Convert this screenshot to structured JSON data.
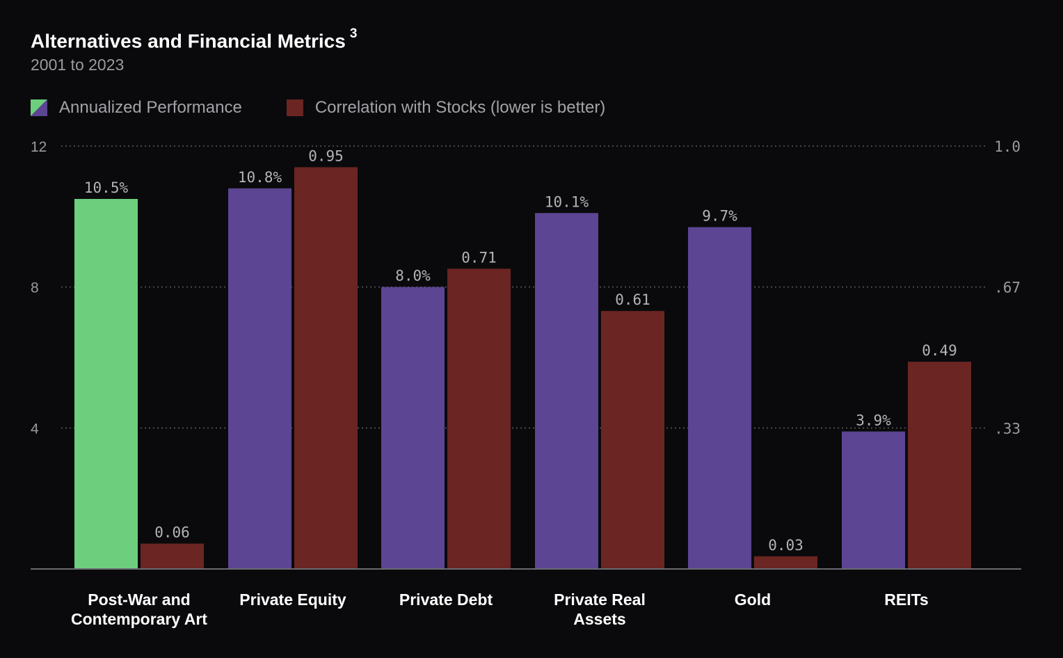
{
  "title": "Alternatives and Financial Metrics",
  "title_footnote": "3",
  "subtitle": "2001 to 2023",
  "legend": [
    {
      "label": "Annualized Performance",
      "swatch": "gradient"
    },
    {
      "label": "Correlation with Stocks (lower is better)",
      "swatch": "#6b2522"
    }
  ],
  "colors": {
    "highlight": "#6dcf7e",
    "performance": "#5c4592",
    "correlation": "#6b2522",
    "grid": "#5a5a60",
    "tick_text": "#9a9aa0",
    "value_label": "#b4b4b8"
  },
  "chart_data": {
    "type": "bar",
    "categories": [
      [
        "Post-War and",
        "Contemporary Art"
      ],
      [
        "Private Equity"
      ],
      [
        "Private Debt"
      ],
      [
        "Private Real",
        "Assets"
      ],
      [
        "Gold"
      ],
      [
        "REITs"
      ]
    ],
    "series": [
      {
        "name": "Annualized Performance",
        "axis": "left",
        "values": [
          10.5,
          10.8,
          8.0,
          10.1,
          9.7,
          3.9
        ],
        "labels": [
          "10.5%",
          "10.8%",
          "8.0%",
          "10.1%",
          "9.7%",
          "3.9%"
        ],
        "highlight_index": 0
      },
      {
        "name": "Correlation with Stocks (lower is better)",
        "axis": "right",
        "values": [
          0.06,
          0.95,
          0.71,
          0.61,
          0.03,
          0.49
        ],
        "labels": [
          "0.06",
          "0.95",
          "0.71",
          "0.61",
          "0.03",
          "0.49"
        ]
      }
    ],
    "left_axis": {
      "range": [
        0,
        12
      ],
      "ticks": [
        4,
        8,
        12
      ],
      "tick_labels": [
        "4",
        "8",
        "12"
      ]
    },
    "right_axis": {
      "range": [
        0,
        1.0
      ],
      "ticks": [
        0.333,
        0.667,
        1.0
      ],
      "tick_labels": [
        ".33",
        ".67",
        "1.0"
      ]
    },
    "grid": true,
    "legend_position": "top-left"
  }
}
